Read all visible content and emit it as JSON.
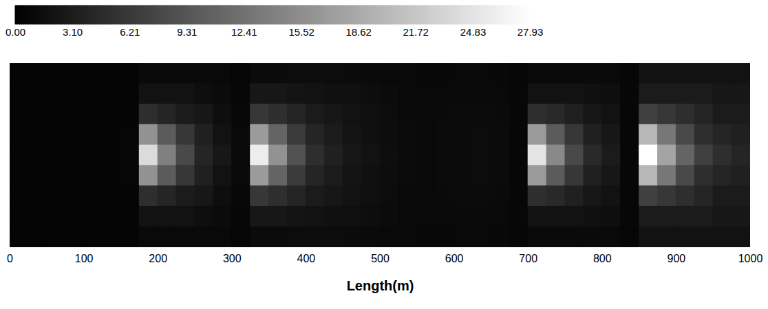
{
  "chart_data": {
    "type": "heatmap",
    "x_label": "Length(m)",
    "xlim": [
      0,
      1000
    ],
    "xticks": [
      0,
      100,
      200,
      300,
      400,
      500,
      600,
      700,
      800,
      900,
      1000
    ],
    "tick_labels": "x",
    "colorbar": {
      "range": [
        0,
        27.93
      ],
      "ticks": [
        {
          "value": 0,
          "label": "0.00"
        },
        {
          "value": 3.1,
          "label": "3.10"
        },
        6.21,
        9.31,
        12.41,
        15.52,
        18.62,
        21.72,
        24.83,
        27.93
      ]
    },
    "x_bins": [
      0,
      25,
      50,
      75,
      100,
      125,
      150,
      175,
      200,
      225,
      250,
      275,
      300,
      325,
      350,
      375,
      400,
      425,
      450,
      475,
      500,
      525,
      550,
      575,
      600,
      625,
      650,
      675,
      700,
      725,
      750,
      775,
      800,
      825,
      850,
      875,
      900,
      925,
      950,
      975,
      1000
    ],
    "cells": [
      [
        0.5,
        0.5,
        0.5,
        0.5,
        0.5,
        0.5,
        0.5,
        1,
        1,
        1,
        1,
        1,
        0.7,
        1.2,
        1.2,
        1.3,
        1.3,
        1.3,
        1.2,
        1.1,
        1,
        1,
        0.9,
        0.9,
        1,
        1,
        0.9,
        0.7,
        1.1,
        1.1,
        1.1,
        1.1,
        1,
        0.7,
        2,
        2,
        2,
        2,
        2,
        2
      ],
      [
        0.5,
        0.5,
        0.5,
        0.5,
        0.5,
        0.5,
        0.5,
        2,
        2,
        2,
        1.5,
        1.2,
        0.8,
        2.5,
        2.5,
        2.2,
        2,
        1.8,
        1.6,
        1.4,
        1.2,
        1,
        1,
        1,
        1.1,
        1.1,
        1,
        0.8,
        2,
        2,
        2,
        1.8,
        1.5,
        0.8,
        3,
        3,
        3,
        3,
        2.5,
        2.5
      ],
      [
        0.5,
        0.5,
        0.5,
        0.5,
        0.5,
        0.5,
        0.6,
        5,
        4,
        3,
        2.5,
        1.5,
        0.9,
        6,
        5,
        4,
        3,
        2.5,
        2,
        1.6,
        1.3,
        1.1,
        1,
        1.1,
        1.2,
        1.2,
        1.1,
        0.8,
        5,
        4.5,
        3.5,
        2.5,
        2,
        0.8,
        7,
        6,
        5,
        4,
        3,
        3
      ],
      [
        0.5,
        0.5,
        0.5,
        0.5,
        0.5,
        0.5,
        0.7,
        16,
        10,
        6,
        3.5,
        2,
        1,
        17,
        11,
        6.5,
        4,
        3,
        2.2,
        1.8,
        1.4,
        1.2,
        1,
        1.2,
        1.2,
        1.3,
        1.2,
        0.8,
        17,
        10,
        6,
        3.5,
        2.5,
        0.8,
        20,
        13,
        8,
        5,
        4,
        3.5
      ],
      [
        0.5,
        0.5,
        0.5,
        0.5,
        0.5,
        0.5,
        0.8,
        24,
        14,
        8,
        4,
        2.5,
        1,
        26,
        16,
        9,
        5,
        3.5,
        2.5,
        2,
        1.5,
        1.2,
        1,
        1.2,
        1.2,
        1.3,
        1.2,
        0.8,
        25,
        15,
        8,
        4.5,
        3,
        0.8,
        28,
        18,
        11,
        7,
        5,
        4
      ],
      [
        0.5,
        0.5,
        0.5,
        0.5,
        0.5,
        0.5,
        0.7,
        16,
        10,
        6,
        3.5,
        2,
        1,
        17,
        11,
        6.5,
        4,
        3,
        2.2,
        1.8,
        1.4,
        1.2,
        1,
        1.2,
        1.2,
        1.3,
        1.2,
        0.8,
        17,
        10,
        6,
        3.5,
        2.5,
        0.8,
        20,
        13,
        8,
        5,
        4,
        3.5
      ],
      [
        0.5,
        0.5,
        0.5,
        0.5,
        0.5,
        0.5,
        0.6,
        5,
        4,
        3,
        2.5,
        1.5,
        0.9,
        6,
        5,
        4,
        3,
        2.5,
        2,
        1.6,
        1.3,
        1.1,
        1,
        1.1,
        1.2,
        1.2,
        1.1,
        0.8,
        5,
        4.5,
        3.5,
        2.5,
        2,
        0.8,
        7,
        6,
        5,
        4,
        3,
        3
      ],
      [
        0.5,
        0.5,
        0.5,
        0.5,
        0.5,
        0.5,
        0.5,
        2,
        2,
        2,
        1.5,
        1.2,
        0.8,
        2.5,
        2.5,
        2.2,
        2,
        1.8,
        1.6,
        1.4,
        1.2,
        1,
        1,
        1,
        1.1,
        1.1,
        1,
        0.8,
        2,
        2,
        2,
        1.8,
        1.5,
        0.8,
        3,
        3,
        3,
        3,
        2.5,
        2.5
      ],
      [
        0.5,
        0.5,
        0.5,
        0.5,
        0.5,
        0.5,
        0.5,
        1,
        1,
        1,
        1,
        1,
        0.7,
        1.2,
        1.2,
        1.3,
        1.3,
        1.3,
        1.2,
        1.1,
        1,
        1,
        0.9,
        0.9,
        1,
        1,
        0.9,
        0.7,
        1.1,
        1.1,
        1.1,
        1.1,
        1,
        0.7,
        2,
        2,
        2,
        2,
        2,
        2
      ]
    ]
  }
}
